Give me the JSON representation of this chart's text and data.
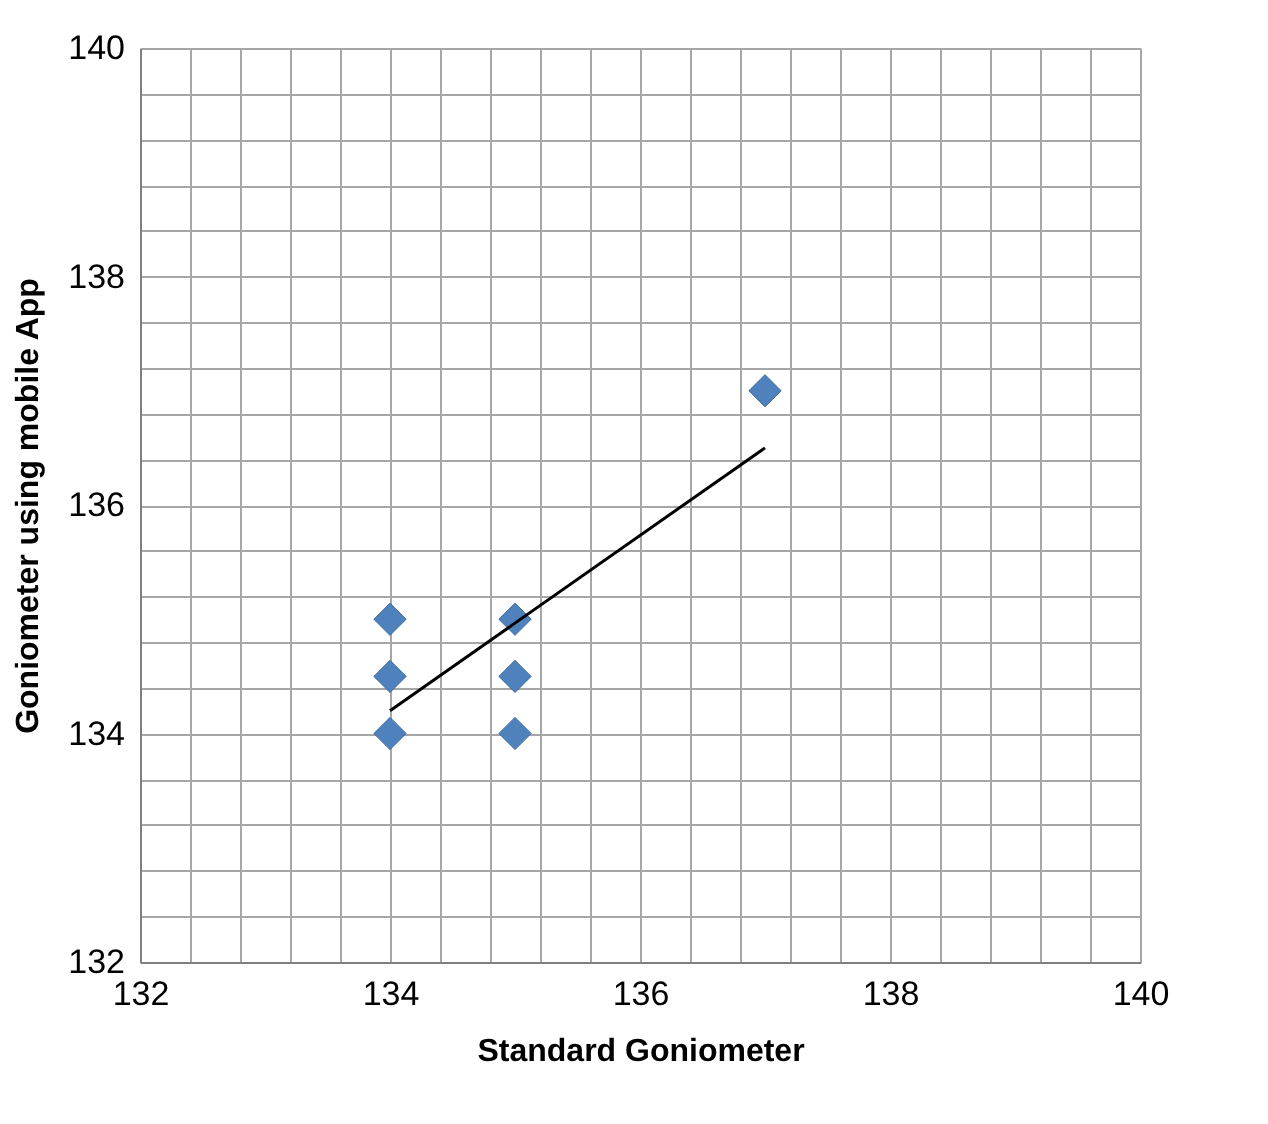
{
  "chart_data": {
    "type": "scatter",
    "xlabel": "Standard Goniometer",
    "ylabel": "Goniometer using mobile App",
    "grid": true,
    "xlim": [
      132,
      140
    ],
    "ylim": [
      132,
      140
    ],
    "xticks": [
      132,
      {
        "value": 132.4,
        "label": null
      },
      {
        "value": 132.8,
        "label": null
      },
      {
        "value": 133.2,
        "label": null
      },
      {
        "value": 133.6,
        "label": null
      },
      134,
      {
        "value": 134.4,
        "label": null
      },
      {
        "value": 134.8,
        "label": null
      },
      {
        "value": 135.2,
        "label": null
      },
      {
        "value": 135.6,
        "label": null
      },
      136,
      {
        "value": 136.4,
        "label": null
      },
      {
        "value": 136.8,
        "label": null
      },
      {
        "value": 137.2,
        "label": null
      },
      {
        "value": 137.6,
        "label": null
      },
      138,
      {
        "value": 138.4,
        "label": null
      },
      {
        "value": 138.8,
        "label": null
      },
      {
        "value": 139.2,
        "label": null
      },
      {
        "value": 139.6,
        "label": null
      },
      140
    ],
    "yticks": [
      132,
      {
        "value": 132.4,
        "label": null
      },
      {
        "value": 132.8,
        "label": null
      },
      {
        "value": 133.2,
        "label": null
      },
      {
        "value": 133.6,
        "label": null
      },
      134,
      {
        "value": 134.4,
        "label": null
      },
      {
        "value": 134.8,
        "label": null
      },
      {
        "value": 135.2,
        "label": null
      },
      {
        "value": 135.6,
        "label": null
      },
      136,
      {
        "value": 136.4,
        "label": null
      },
      {
        "value": 136.8,
        "label": null
      },
      {
        "value": 137.2,
        "label": null
      },
      {
        "value": 137.6,
        "label": null
      },
      138,
      {
        "value": 138.4,
        "label": null
      },
      {
        "value": 138.8,
        "label": null
      },
      {
        "value": 139.2,
        "label": null
      },
      {
        "value": 139.6,
        "label": null
      },
      140
    ],
    "series": [
      {
        "marker": "diamond",
        "color": "#4f81bd",
        "x": [
          134,
          134,
          134,
          135,
          135,
          135,
          137
        ],
        "values": [
          135,
          134.5,
          134,
          135,
          134.5,
          134,
          137
        ]
      },
      {
        "type": "line",
        "line_style": "solid",
        "color": "#000000",
        "x": [
          134,
          137
        ],
        "values": [
          134.2,
          136.5
        ]
      }
    ]
  }
}
